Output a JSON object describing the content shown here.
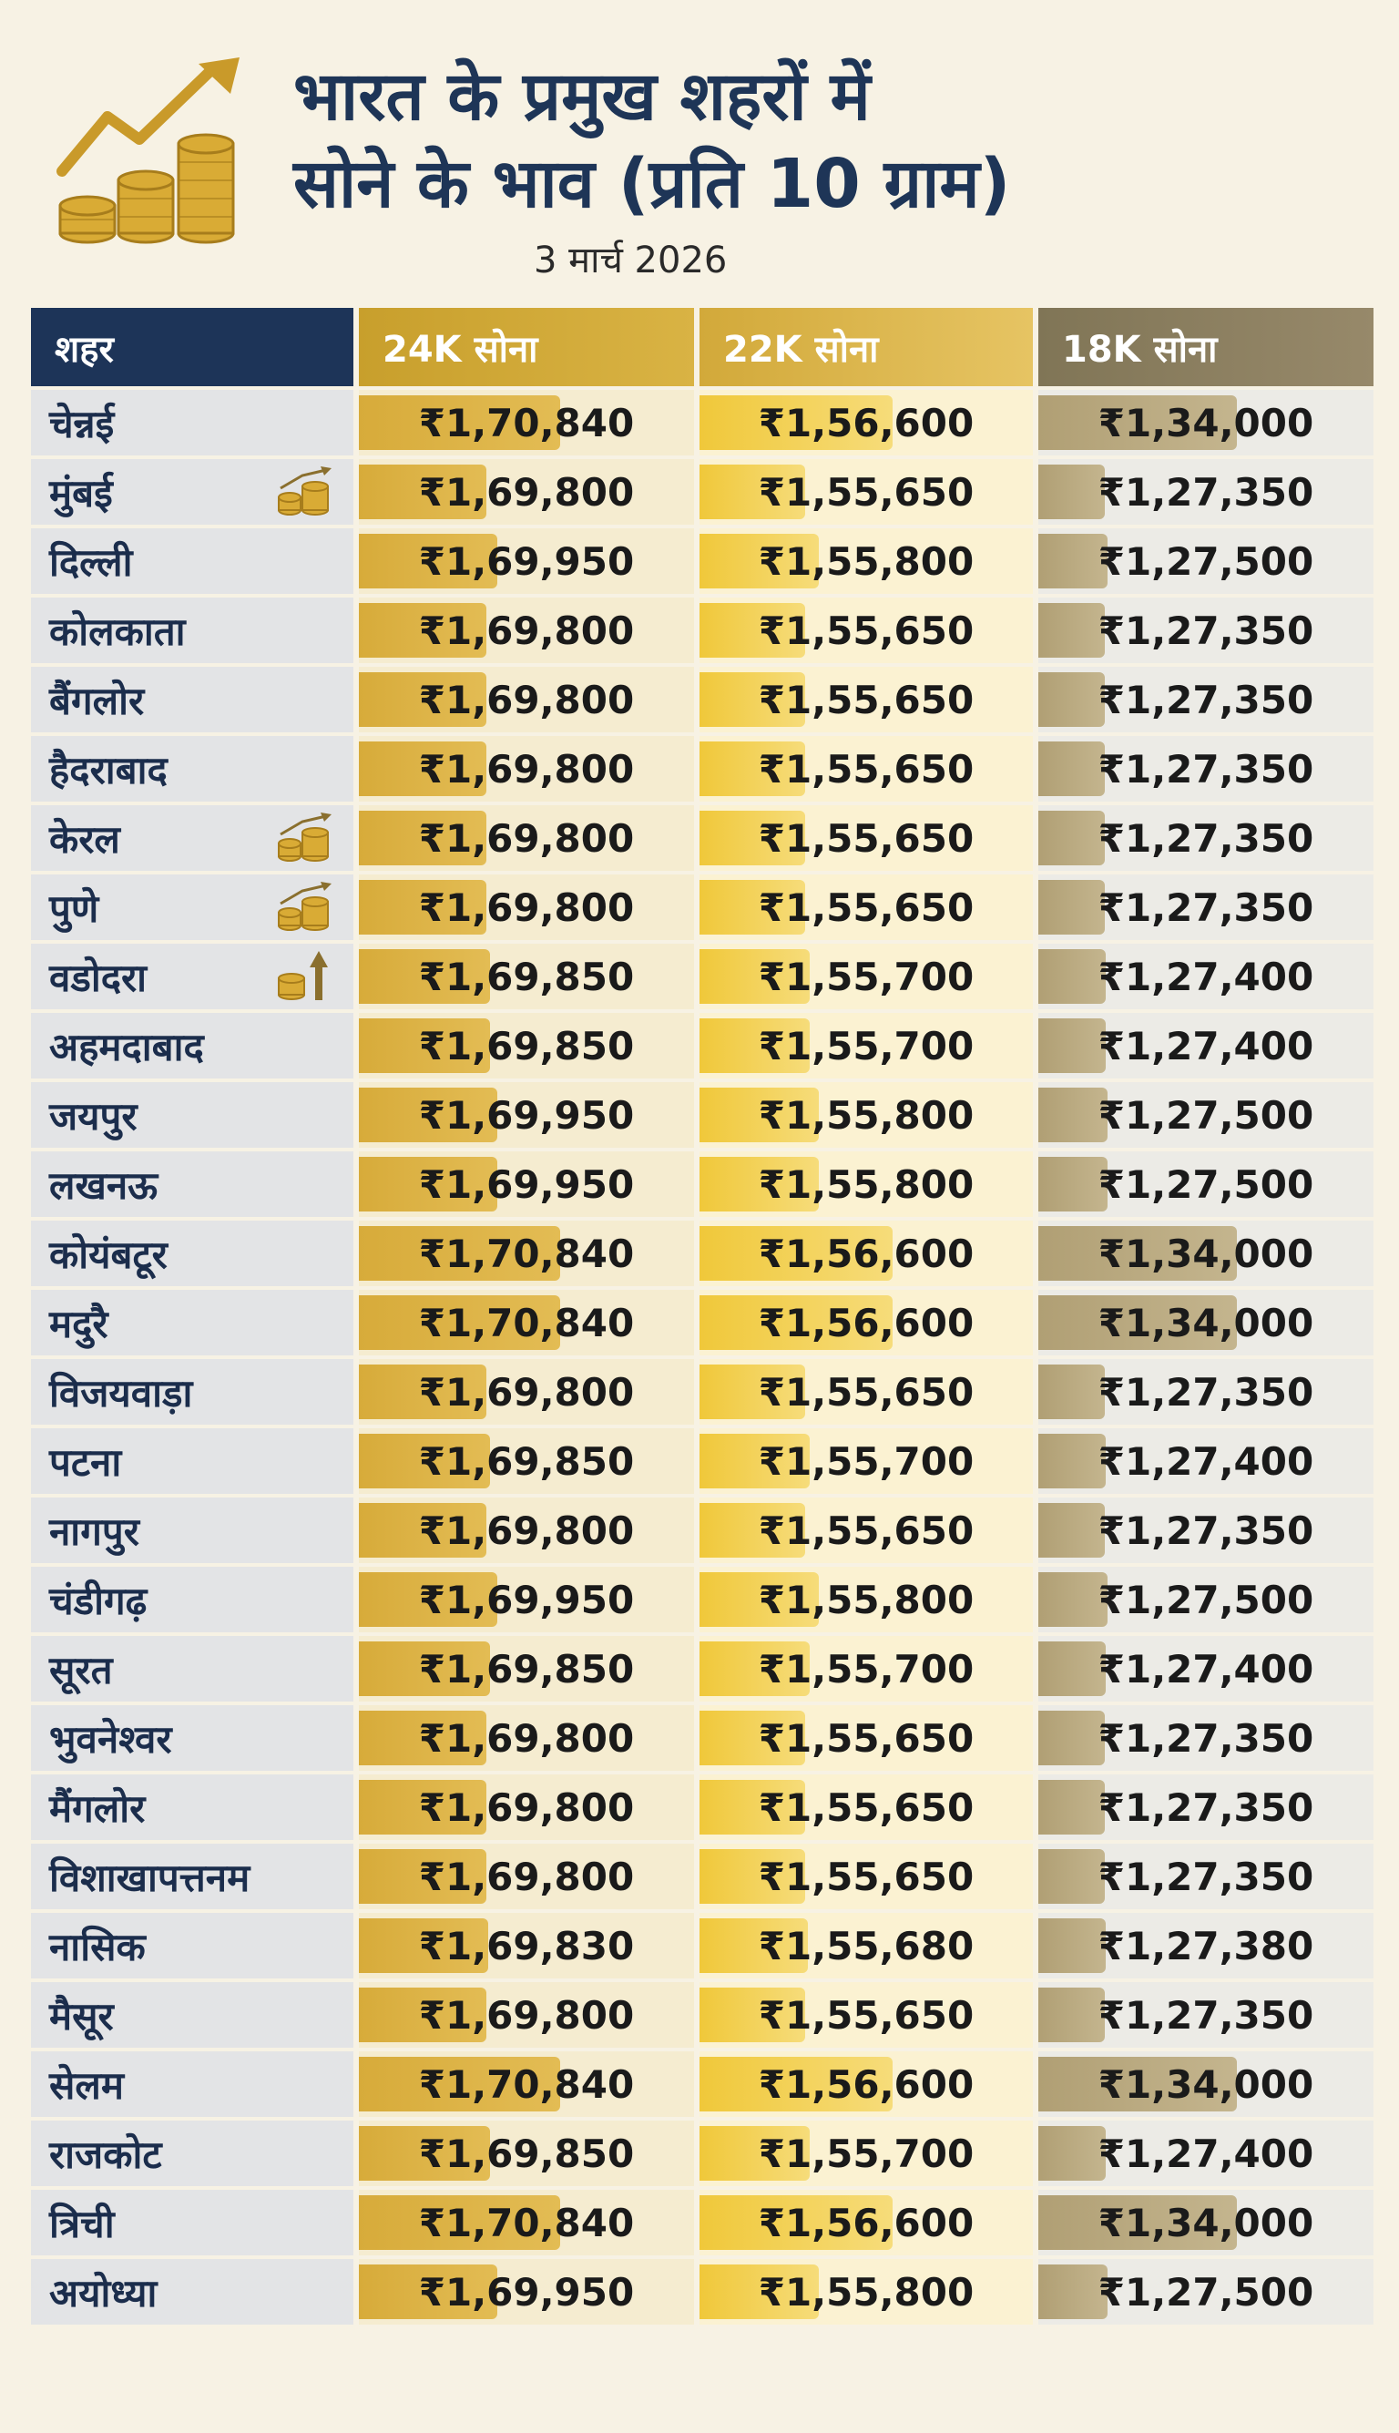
{
  "header": {
    "title_line1": "भारत के प्रमुख शहरों में",
    "title_line2": "सोने के भाव (प्रति 10 ग्राम)",
    "date": "3 मार्च 2026"
  },
  "icons": {
    "logo": "coins-trend-arrow-icon",
    "badge_trend": "coins-up-trend-icon",
    "badge_arrow": "coins-up-arrow-icon"
  },
  "colors": {
    "navy": "#1d3458",
    "gold24": "#d7ab3a",
    "gold22": "#f0c83a",
    "grey18": "#b09f74",
    "background": "#f7f2e4"
  },
  "chart_data": {
    "type": "table",
    "title": "भारत के प्रमुख शहरों में सोने के भाव (प्रति 10 ग्राम)",
    "subtitle": "3 मार्च 2026",
    "columns": [
      "शहर",
      "24K सोना",
      "22K सोना",
      "18K सोना"
    ],
    "bar_scale": {
      "k24": [
        168000,
        171500
      ],
      "k22": [
        154500,
        157200
      ],
      "k18": [
        124000,
        136500
      ]
    },
    "rows": [
      {
        "city": "चेन्नई",
        "k24": "₹1,70,840",
        "k22": "₹1,56,600",
        "k18": "₹1,34,000",
        "n24": 170840,
        "n22": 156600,
        "n18": 134000,
        "badge": ""
      },
      {
        "city": "मुंबई",
        "k24": "₹1,69,800",
        "k22": "₹1,55,650",
        "k18": "₹1,27,350",
        "n24": 169800,
        "n22": 155650,
        "n18": 127350,
        "badge": "coins-up-trend-icon"
      },
      {
        "city": "दिल्ली",
        "k24": "₹1,69,950",
        "k22": "₹1,55,800",
        "k18": "₹1,27,500",
        "n24": 169950,
        "n22": 155800,
        "n18": 127500,
        "badge": ""
      },
      {
        "city": "कोलकाता",
        "k24": "₹1,69,800",
        "k22": "₹1,55,650",
        "k18": "₹1,27,350",
        "n24": 169800,
        "n22": 155650,
        "n18": 127350,
        "badge": ""
      },
      {
        "city": "बैंगलोर",
        "k24": "₹1,69,800",
        "k22": "₹1,55,650",
        "k18": "₹1,27,350",
        "n24": 169800,
        "n22": 155650,
        "n18": 127350,
        "badge": ""
      },
      {
        "city": "हैदराबाद",
        "k24": "₹1,69,800",
        "k22": "₹1,55,650",
        "k18": "₹1,27,350",
        "n24": 169800,
        "n22": 155650,
        "n18": 127350,
        "badge": ""
      },
      {
        "city": "केरल",
        "k24": "₹1,69,800",
        "k22": "₹1,55,650",
        "k18": "₹1,27,350",
        "n24": 169800,
        "n22": 155650,
        "n18": 127350,
        "badge": "coins-up-trend-icon"
      },
      {
        "city": "पुणे",
        "k24": "₹1,69,800",
        "k22": "₹1,55,650",
        "k18": "₹1,27,350",
        "n24": 169800,
        "n22": 155650,
        "n18": 127350,
        "badge": "coins-up-trend-icon"
      },
      {
        "city": "वडोदरा",
        "k24": "₹1,69,850",
        "k22": "₹1,55,700",
        "k18": "₹1,27,400",
        "n24": 169850,
        "n22": 155700,
        "n18": 127400,
        "badge": "coins-up-arrow-icon"
      },
      {
        "city": "अहमदाबाद",
        "k24": "₹1,69,850",
        "k22": "₹1,55,700",
        "k18": "₹1,27,400",
        "n24": 169850,
        "n22": 155700,
        "n18": 127400,
        "badge": ""
      },
      {
        "city": "जयपुर",
        "k24": "₹1,69,950",
        "k22": "₹1,55,800",
        "k18": "₹1,27,500",
        "n24": 169950,
        "n22": 155800,
        "n18": 127500,
        "badge": ""
      },
      {
        "city": "लखनऊ",
        "k24": "₹1,69,950",
        "k22": "₹1,55,800",
        "k18": "₹1,27,500",
        "n24": 169950,
        "n22": 155800,
        "n18": 127500,
        "badge": ""
      },
      {
        "city": "कोयंबटूर",
        "k24": "₹1,70,840",
        "k22": "₹1,56,600",
        "k18": "₹1,34,000",
        "n24": 170840,
        "n22": 156600,
        "n18": 134000,
        "badge": ""
      },
      {
        "city": "मदुरै",
        "k24": "₹1,70,840",
        "k22": "₹1,56,600",
        "k18": "₹1,34,000",
        "n24": 170840,
        "n22": 156600,
        "n18": 134000,
        "badge": ""
      },
      {
        "city": "विजयवाड़ा",
        "k24": "₹1,69,800",
        "k22": "₹1,55,650",
        "k18": "₹1,27,350",
        "n24": 169800,
        "n22": 155650,
        "n18": 127350,
        "badge": ""
      },
      {
        "city": "पटना",
        "k24": "₹1,69,850",
        "k22": "₹1,55,700",
        "k18": "₹1,27,400",
        "n24": 169850,
        "n22": 155700,
        "n18": 127400,
        "badge": ""
      },
      {
        "city": "नागपुर",
        "k24": "₹1,69,800",
        "k22": "₹1,55,650",
        "k18": "₹1,27,350",
        "n24": 169800,
        "n22": 155650,
        "n18": 127350,
        "badge": ""
      },
      {
        "city": "चंडीगढ़",
        "k24": "₹1,69,950",
        "k22": "₹1,55,800",
        "k18": "₹1,27,500",
        "n24": 169950,
        "n22": 155800,
        "n18": 127500,
        "badge": ""
      },
      {
        "city": "सूरत",
        "k24": "₹1,69,850",
        "k22": "₹1,55,700",
        "k18": "₹1,27,400",
        "n24": 169850,
        "n22": 155700,
        "n18": 127400,
        "badge": ""
      },
      {
        "city": "भुवनेश्वर",
        "k24": "₹1,69,800",
        "k22": "₹1,55,650",
        "k18": "₹1,27,350",
        "n24": 169800,
        "n22": 155650,
        "n18": 127350,
        "badge": ""
      },
      {
        "city": "मैंगलोर",
        "k24": "₹1,69,800",
        "k22": "₹1,55,650",
        "k18": "₹1,27,350",
        "n24": 169800,
        "n22": 155650,
        "n18": 127350,
        "badge": ""
      },
      {
        "city": "विशाखापत्तनम",
        "k24": "₹1,69,800",
        "k22": "₹1,55,650",
        "k18": "₹1,27,350",
        "n24": 169800,
        "n22": 155650,
        "n18": 127350,
        "badge": ""
      },
      {
        "city": "नासिक",
        "k24": "₹1,69,830",
        "k22": "₹1,55,680",
        "k18": "₹1,27,380",
        "n24": 169830,
        "n22": 155680,
        "n18": 127380,
        "badge": ""
      },
      {
        "city": "मैसूर",
        "k24": "₹1,69,800",
        "k22": "₹1,55,650",
        "k18": "₹1,27,350",
        "n24": 169800,
        "n22": 155650,
        "n18": 127350,
        "badge": ""
      },
      {
        "city": "सेलम",
        "k24": "₹1,70,840",
        "k22": "₹1,56,600",
        "k18": "₹1,34,000",
        "n24": 170840,
        "n22": 156600,
        "n18": 134000,
        "badge": ""
      },
      {
        "city": "राजकोट",
        "k24": "₹1,69,850",
        "k22": "₹1,55,700",
        "k18": "₹1,27,400",
        "n24": 169850,
        "n22": 155700,
        "n18": 127400,
        "badge": ""
      },
      {
        "city": "त्रिची",
        "k24": "₹1,70,840",
        "k22": "₹1,56,600",
        "k18": "₹1,34,000",
        "n24": 170840,
        "n22": 156600,
        "n18": 134000,
        "badge": ""
      },
      {
        "city": "अयोध्या",
        "k24": "₹1,69,950",
        "k22": "₹1,55,800",
        "k18": "₹1,27,500",
        "n24": 169950,
        "n22": 155800,
        "n18": 127500,
        "badge": ""
      }
    ]
  }
}
